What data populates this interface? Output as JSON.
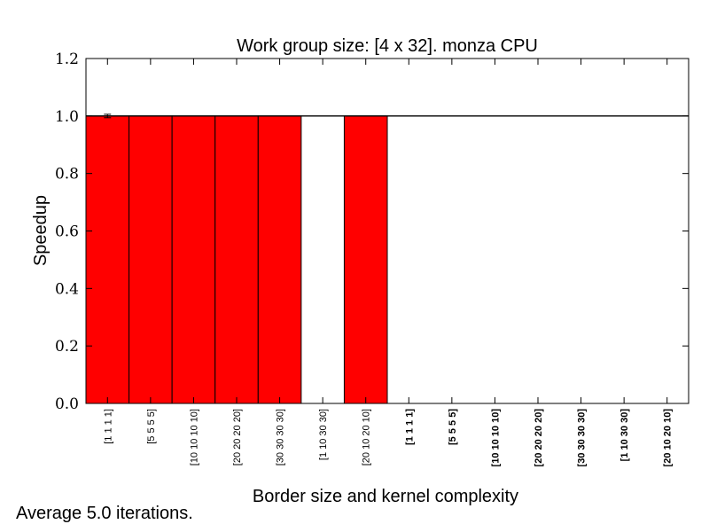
{
  "chart_data": {
    "type": "bar",
    "title": "Work group size: [4 x 32]. monza CPU",
    "xlabel": "Border size and kernel complexity",
    "ylabel": "Speedup",
    "ylim": [
      0,
      1.2
    ],
    "yticks": [
      "0.0",
      "0.2",
      "0.4",
      "0.6",
      "0.8",
      "1.0",
      "1.2"
    ],
    "categories": [
      "[1 1 1 1]",
      "[5 5 5 5]",
      "[10 10 10 10]",
      "[20 20 20 20]",
      "[30 30 30 30]",
      "[1 10 30 30]",
      "[20 10 20 10]",
      "[1 1 1 1]",
      "[5 5 5 5]",
      "[10 10 10 10]",
      "[20 20 20 20]",
      "[30 30 30 30]",
      "[1 10 30 30]",
      "[20 10 20 10]"
    ],
    "bold_categories": [
      false,
      false,
      false,
      false,
      false,
      false,
      false,
      true,
      true,
      true,
      true,
      true,
      true,
      true
    ],
    "values": [
      1.0,
      1.0,
      1.0,
      1.0,
      1.0,
      0,
      1.0,
      0,
      0,
      0,
      0,
      0,
      0,
      0
    ],
    "error": [
      0.006,
      0,
      0,
      0,
      0,
      0,
      0,
      0,
      0,
      0,
      0,
      0,
      0,
      0
    ],
    "reference_line": 1.0,
    "bar_color": "#ff0000",
    "grid": false
  },
  "footnote": "Average 5.0 iterations."
}
